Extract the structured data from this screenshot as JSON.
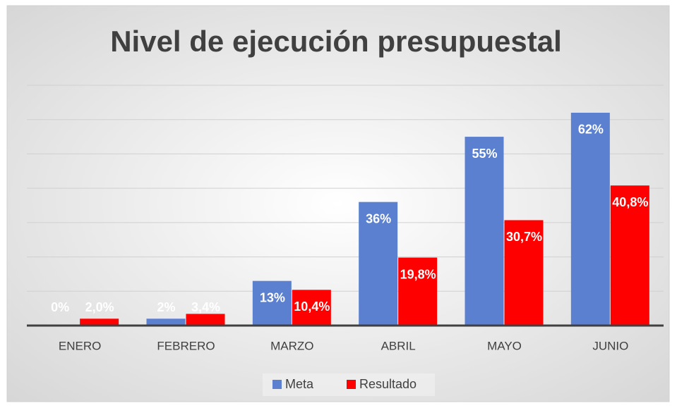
{
  "chart_data": {
    "type": "bar",
    "title": "Nivel de ejecución presupuestal",
    "categories": [
      "ENERO",
      "FEBRERO",
      "MARZO",
      "ABRIL",
      "MAYO",
      "JUNIO"
    ],
    "series": [
      {
        "name": "Meta",
        "color": "#5b80cf",
        "values": [
          0,
          2,
          13,
          36,
          55,
          62
        ],
        "value_labels": [
          "0%",
          "2%",
          "13%",
          "36%",
          "55%",
          "62%"
        ]
      },
      {
        "name": "Resultado",
        "color": "#ff0000",
        "values": [
          2.0,
          3.4,
          10.4,
          19.8,
          30.7,
          40.8
        ],
        "value_labels": [
          "2,0%",
          "3,4%",
          "10,4%",
          "19,8%",
          "30,7%",
          "40,8%"
        ]
      }
    ],
    "ylim": [
      0,
      70
    ],
    "yticks": [
      0,
      10,
      20,
      30,
      40,
      50,
      60,
      70
    ],
    "grid": true,
    "legend": "bottom"
  }
}
